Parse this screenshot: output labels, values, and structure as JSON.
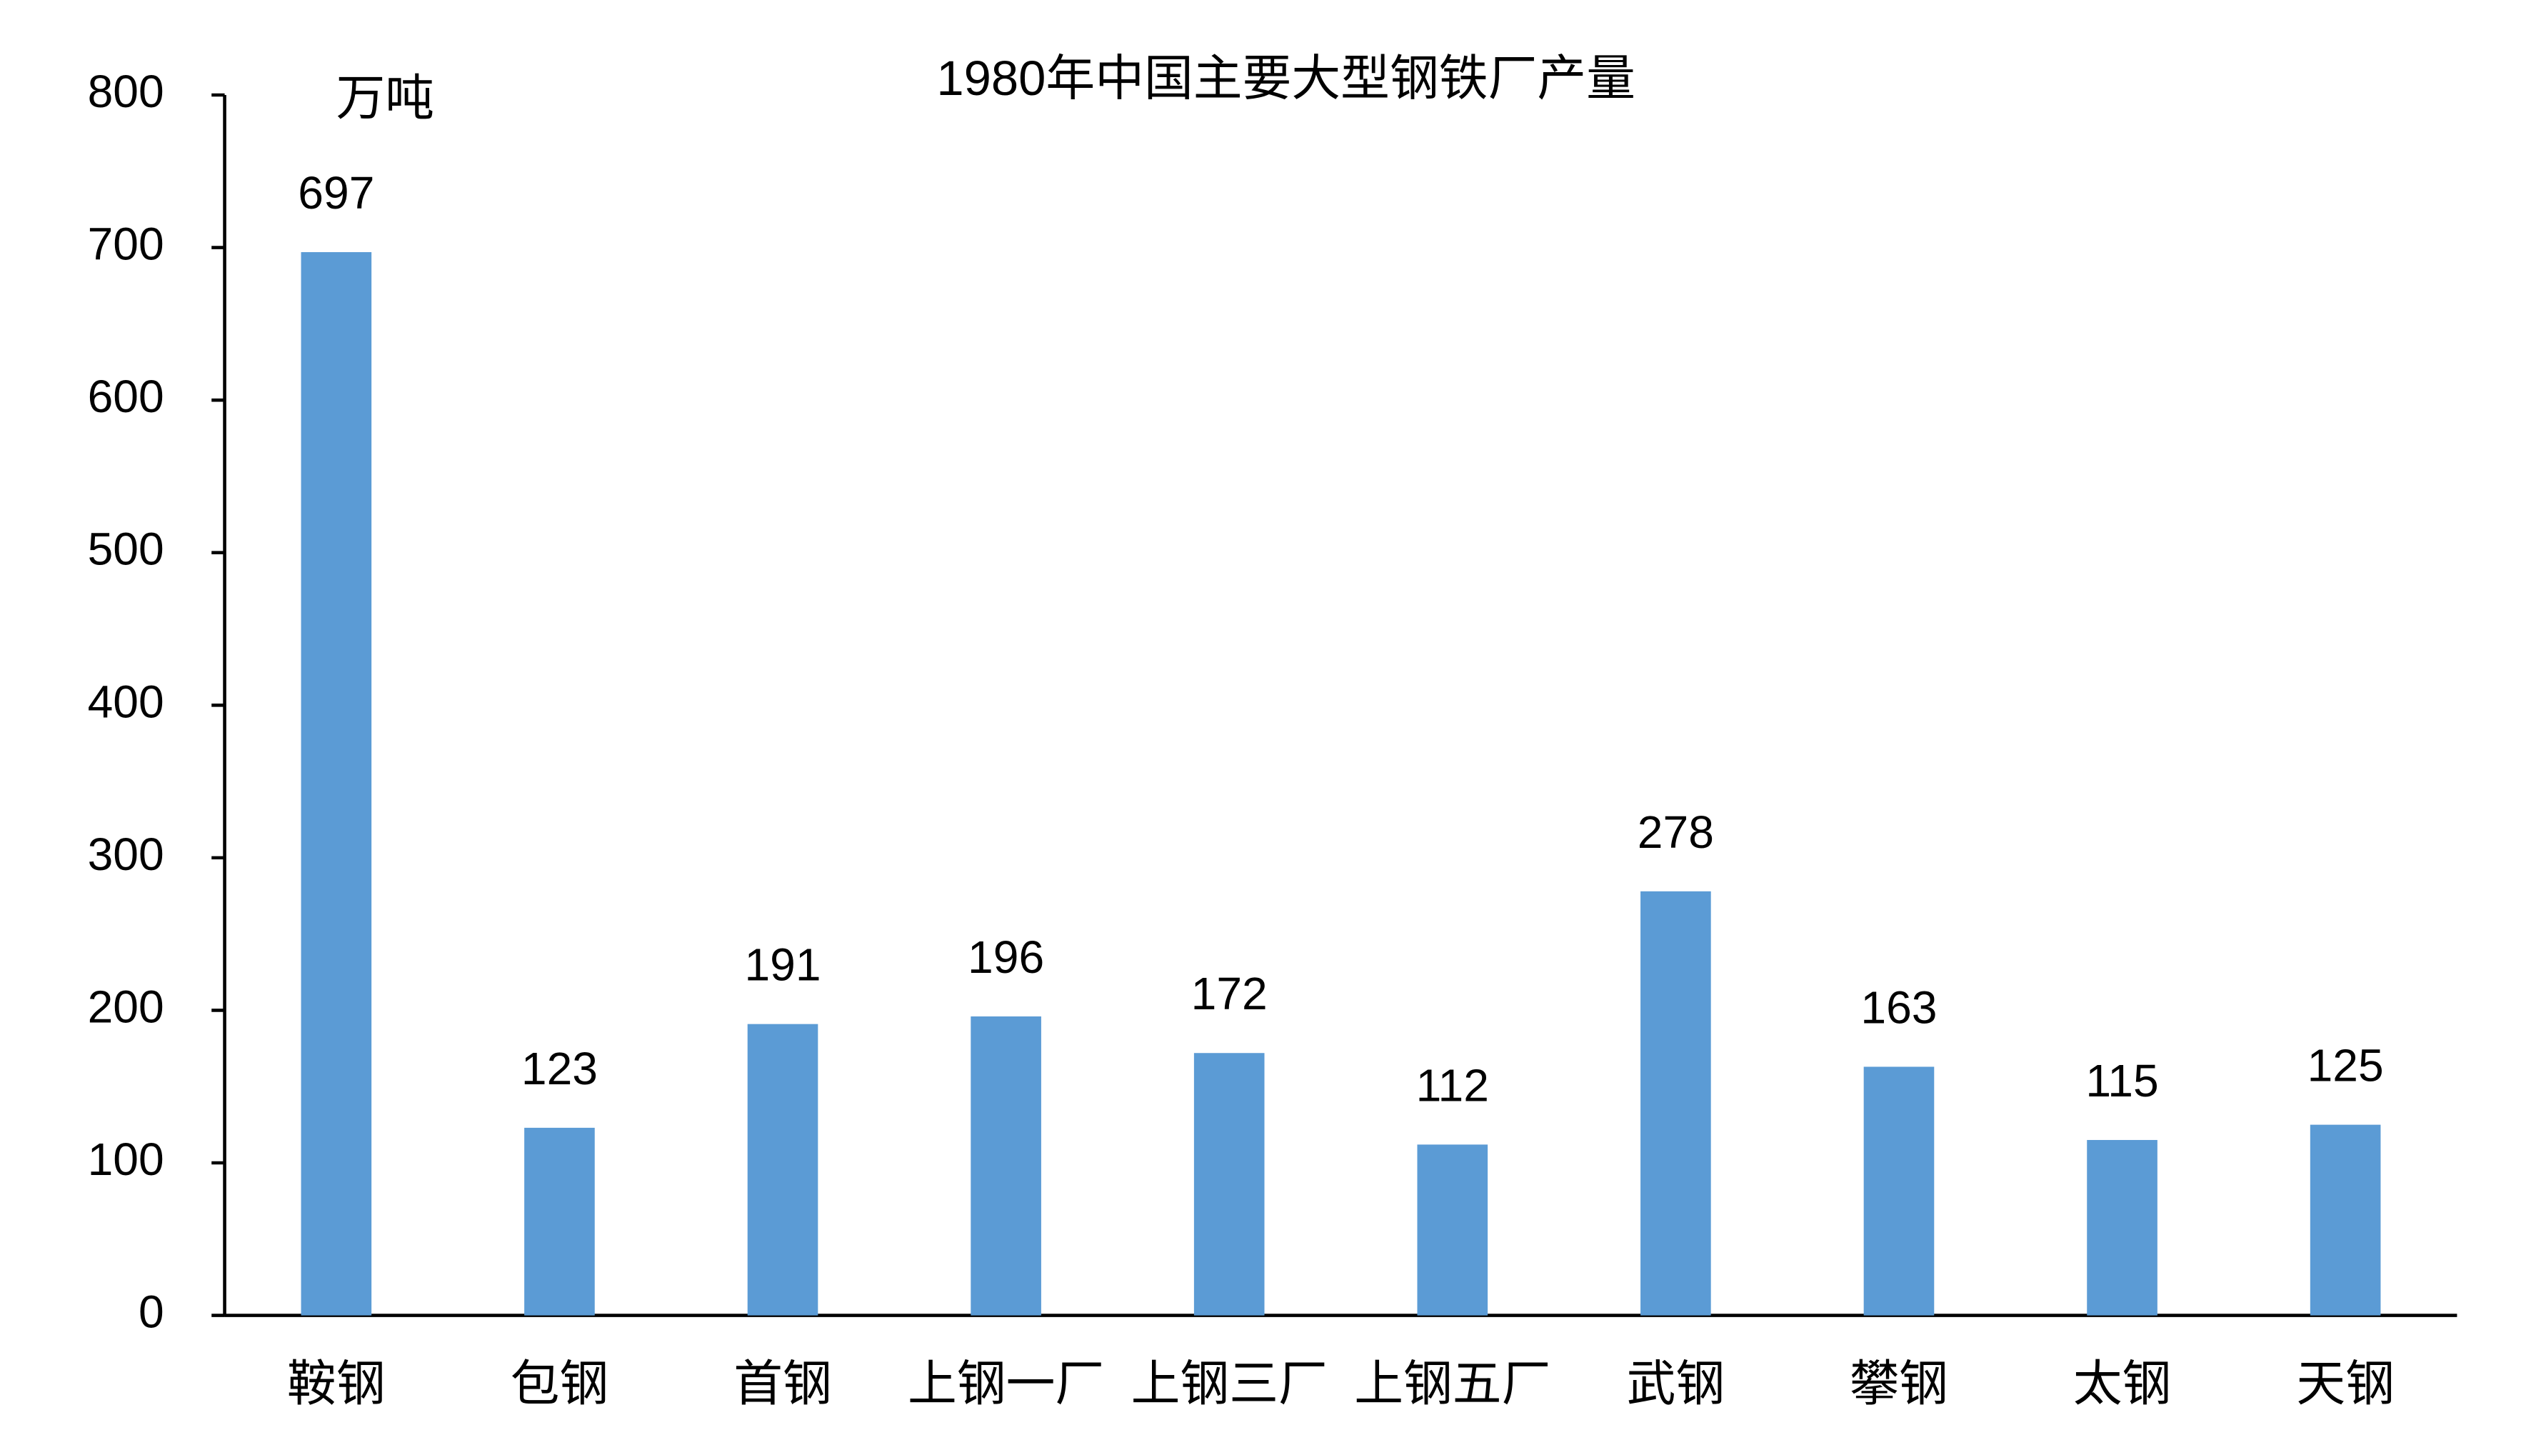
{
  "chart_data": {
    "type": "bar",
    "title": "1980年中国主要大型钢铁厂产量",
    "unit": "万吨",
    "categories": [
      "鞍钢",
      "包钢",
      "首钢",
      "上钢一厂",
      "上钢三厂",
      "上钢五厂",
      "武钢",
      "攀钢",
      "太钢",
      "天钢"
    ],
    "values": [
      697,
      123,
      191,
      196,
      172,
      112,
      278,
      163,
      115,
      125
    ],
    "color": "#5b9bd5",
    "ylim": [
      0,
      800
    ],
    "yticks": [
      0,
      100,
      200,
      300,
      400,
      500,
      600,
      700,
      800
    ],
    "grid": false
  }
}
